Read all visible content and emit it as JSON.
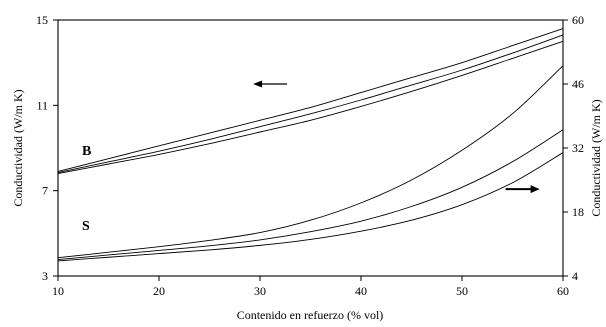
{
  "chart_data": {
    "type": "line",
    "title": "",
    "xlabel": "Contenido en refuerzo (% vol)",
    "ylabel_left": "Conductividad (W/m K)",
    "ylabel_right": "Conductividad (W/m K)",
    "xlim": [
      10,
      60
    ],
    "ylim_left": [
      3,
      15
    ],
    "ylim_right": [
      4,
      60
    ],
    "x_ticks": [
      10,
      20,
      30,
      40,
      50,
      60
    ],
    "y_ticks_left": [
      3,
      7,
      11,
      15
    ],
    "y_ticks_right": [
      4,
      18,
      32,
      46,
      60
    ],
    "grid": "none",
    "annotations": [
      "B",
      "S"
    ],
    "arrows": [
      {
        "axis": "left",
        "direction": "left",
        "at": [
          31,
          12
        ]
      },
      {
        "axis": "right",
        "direction": "right",
        "at": [
          56,
          23
        ]
      }
    ],
    "series": [
      {
        "group": "B",
        "axis": "left",
        "x": [
          10,
          15,
          20,
          25,
          30,
          35,
          40,
          45,
          50,
          55,
          60
        ],
        "y": [
          7.9,
          8.5,
          9.1,
          9.7,
          10.3,
          10.9,
          11.6,
          12.3,
          13.0,
          13.8,
          14.6
        ]
      },
      {
        "group": "B",
        "axis": "left",
        "x": [
          10,
          15,
          20,
          25,
          30,
          35,
          40,
          45,
          50,
          55,
          60
        ],
        "y": [
          7.85,
          8.35,
          8.85,
          9.4,
          10.0,
          10.6,
          11.25,
          11.95,
          12.65,
          13.45,
          14.3
        ]
      },
      {
        "group": "B",
        "axis": "left",
        "x": [
          10,
          15,
          20,
          25,
          30,
          35,
          40,
          45,
          50,
          55,
          60
        ],
        "y": [
          7.8,
          8.25,
          8.7,
          9.2,
          9.75,
          10.3,
          10.95,
          11.65,
          12.4,
          13.2,
          14.0
        ]
      },
      {
        "group": "S",
        "axis": "right",
        "x": [
          10,
          15,
          20,
          25,
          30,
          35,
          40,
          45,
          50,
          55,
          60
        ],
        "y": [
          8.0,
          9.2,
          10.4,
          11.8,
          13.5,
          16.2,
          20.0,
          25.0,
          31.5,
          39.5,
          50.0
        ]
      },
      {
        "group": "S",
        "axis": "right",
        "x": [
          10,
          15,
          20,
          25,
          30,
          35,
          40,
          45,
          50,
          55,
          60
        ],
        "y": [
          7.6,
          8.6,
          9.6,
          10.6,
          11.9,
          13.7,
          16.0,
          19.2,
          23.4,
          29.0,
          36.0
        ]
      },
      {
        "group": "S",
        "axis": "right",
        "x": [
          10,
          15,
          20,
          25,
          30,
          35,
          40,
          45,
          50,
          55,
          60
        ],
        "y": [
          7.3,
          8.1,
          8.9,
          9.7,
          10.7,
          12.0,
          13.8,
          16.2,
          19.6,
          24.4,
          31.0
        ]
      }
    ]
  }
}
